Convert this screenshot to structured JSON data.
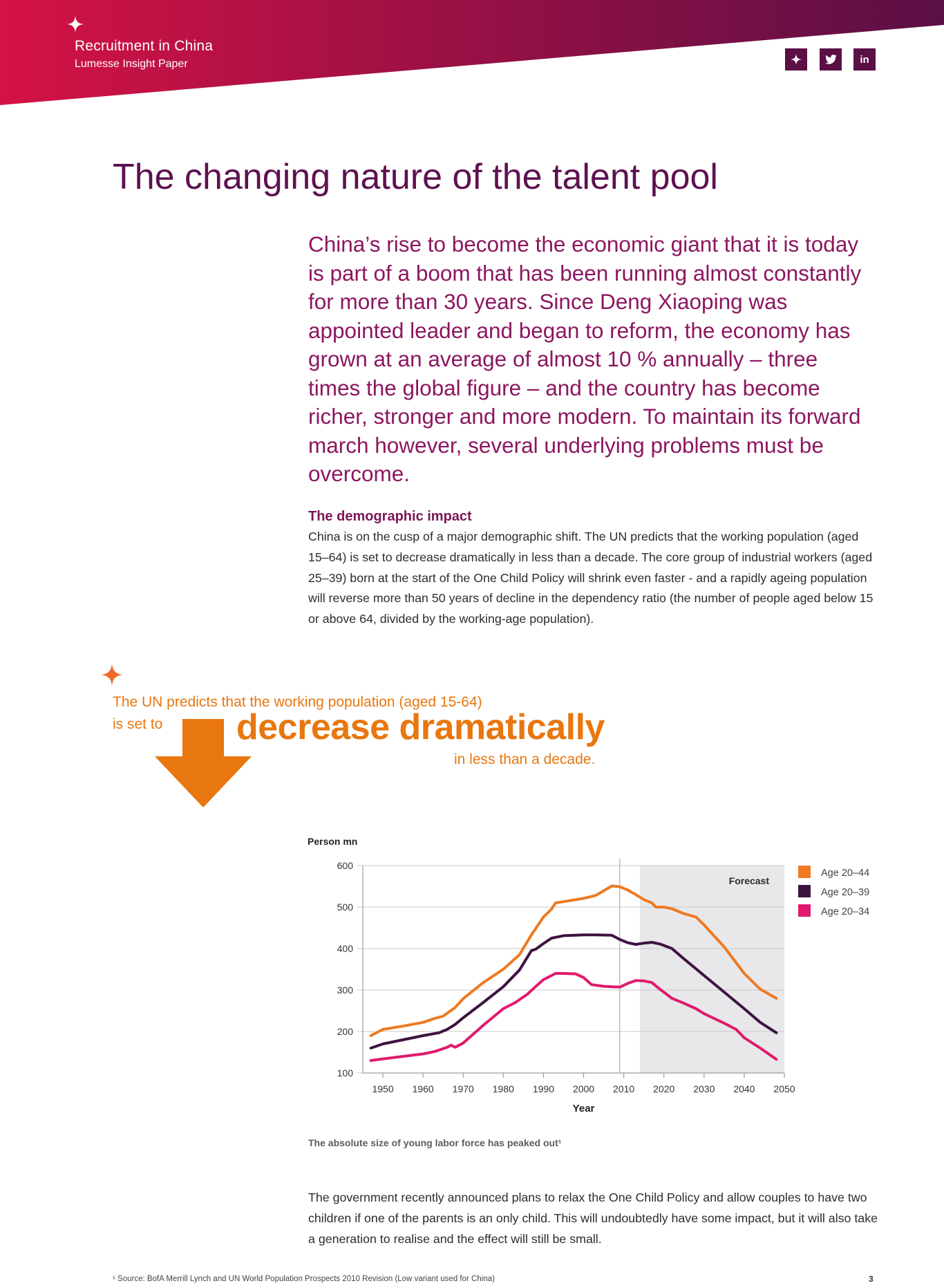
{
  "header": {
    "title": "Recruitment in China",
    "subtitle": "Lumesse Insight Paper",
    "gradient_start": "#d41245",
    "gradient_end": "#5a0f45",
    "social_icons": [
      "sparkle-icon",
      "twitter-icon",
      "linkedin-icon"
    ],
    "linkedin_text": "in"
  },
  "page_title": "The changing nature of the talent pool",
  "intro": "China’s rise to become the economic giant that it is today is part of a boom that has been running almost constantly for more than 30 years. Since Deng Xiaoping was appointed leader and began to reform, the economy has grown at an average of almost 10 % annually – three times the global figure – and the country has become richer, stronger and more modern. To maintain its forward march however, several underlying problems must be overcome.",
  "section": {
    "heading": "The demographic impact",
    "body": "China is on the cusp of a major demographic shift. The UN predicts that the working population (aged 15–64) is set to decrease dramatically in less than a decade. The core group of industrial workers (aged 25–39) born at the start of the One Child Policy will shrink even faster - and a rapidly ageing population will reverse more than 50 years of decline in the dependency ratio (the number of people aged below 15 or above 64, divided by the working-age population)."
  },
  "callout": {
    "line1": "The UN predicts that the working population (aged 15-64)",
    "line2": "is set to",
    "emphasis": "decrease dramatically",
    "line3": "in less than a decade.",
    "color": "#e8770f"
  },
  "chart_data": {
    "type": "line",
    "ylabel": "Person mn",
    "xlabel": "Year",
    "ylim": [
      100,
      600
    ],
    "xlim": [
      1945,
      2050
    ],
    "xticks": [
      1950,
      1960,
      1970,
      1980,
      1990,
      2000,
      2010,
      2020,
      2030,
      2040,
      2050
    ],
    "yticks": [
      100,
      200,
      300,
      400,
      500,
      600
    ],
    "forecast_label": "Forecast",
    "forecast_from": 2014,
    "marker_year": 2009,
    "legend_position": "right",
    "series": [
      {
        "name": "Age 20–44",
        "color": "#ee7a21",
        "x": [
          1947,
          1950,
          1955,
          1960,
          1963,
          1965,
          1968,
          1970,
          1975,
          1980,
          1984,
          1987,
          1990,
          1992,
          1993,
          1995,
          2000,
          2003,
          2006,
          2007,
          2009,
          2011,
          2013,
          2015,
          2017,
          2018,
          2020,
          2022,
          2025,
          2028,
          2030,
          2035,
          2040,
          2044,
          2048
        ],
        "y": [
          190,
          205,
          213,
          222,
          232,
          237,
          258,
          279,
          318,
          350,
          385,
          433,
          476,
          495,
          510,
          513,
          521,
          528,
          545,
          551,
          549,
          541,
          530,
          518,
          510,
          500,
          500,
          496,
          484,
          476,
          457,
          404,
          340,
          302,
          280
        ]
      },
      {
        "name": "Age 20–39",
        "color": "#3d1340",
        "x": [
          1947,
          1950,
          1955,
          1960,
          1964,
          1966,
          1968,
          1970,
          1975,
          1980,
          1984,
          1987,
          1988,
          1990,
          1992,
          1995,
          2000,
          2003,
          2007,
          2009,
          2011,
          2013,
          2015,
          2017,
          2019,
          2022,
          2025,
          2030,
          2035,
          2040,
          2044,
          2048
        ],
        "y": [
          160,
          170,
          180,
          190,
          197,
          205,
          217,
          233,
          270,
          308,
          348,
          395,
          398,
          412,
          425,
          431,
          433,
          433,
          432,
          422,
          414,
          410,
          413,
          415,
          411,
          400,
          375,
          335,
          295,
          255,
          222,
          197
        ]
      },
      {
        "name": "Age 20–34",
        "color": "#e0196e",
        "x": [
          1947,
          1950,
          1955,
          1960,
          1963,
          1966,
          1967,
          1968,
          1970,
          1975,
          1980,
          1983,
          1986,
          1988,
          1990,
          1993,
          1995,
          1998,
          2000,
          2002,
          2005,
          2009,
          2011,
          2013,
          2015,
          2017,
          2019,
          2022,
          2025,
          2028,
          2030,
          2035,
          2038,
          2040,
          2044,
          2048
        ],
        "y": [
          130,
          134,
          140,
          146,
          152,
          162,
          167,
          162,
          172,
          215,
          255,
          270,
          290,
          308,
          325,
          340,
          340,
          339,
          330,
          313,
          309,
          307,
          316,
          323,
          322,
          318,
          302,
          280,
          268,
          255,
          243,
          220,
          205,
          185,
          160,
          133
        ]
      }
    ]
  },
  "chart_caption": "The absolute size of young labor force has peaked out¹",
  "closing_paragraph": "The government recently announced plans to relax the One Child Policy and allow couples to have two children if one of the parents is an only child. This will undoubtedly have some impact, but it will also take a generation to realise and the effect will still be small.",
  "footnote": "¹ Source: BofA Merrill Lynch and UN World Population Prospects 2010 Revision (Low variant used for China)",
  "page_number": "3"
}
